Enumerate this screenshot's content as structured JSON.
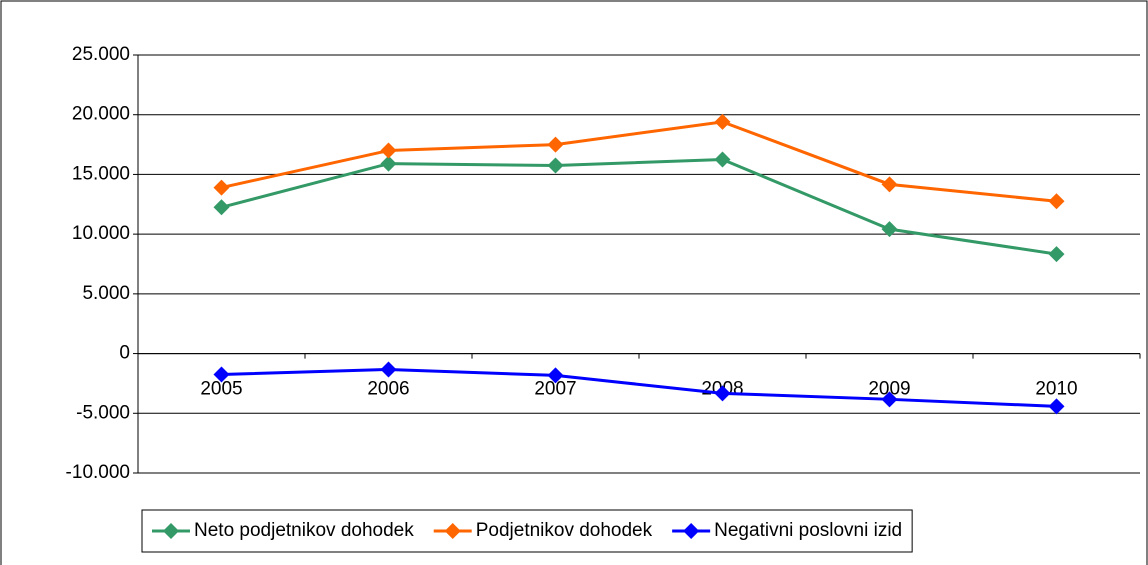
{
  "chart_data": {
    "type": "line",
    "categories": [
      "2005",
      "2006",
      "2007",
      "2008",
      "2009",
      "2010"
    ],
    "series": [
      {
        "name": "Neto podjetnikov dohodek",
        "color": "#339966",
        "values": [
          12250,
          15900,
          15750,
          16250,
          10420,
          8330
        ]
      },
      {
        "name": "Podjetnikov dohodek",
        "color": "#ff6600",
        "values": [
          13900,
          17000,
          17500,
          19400,
          14170,
          12750
        ]
      },
      {
        "name": "Negativni poslovni izid",
        "color": "#0000ff",
        "values": [
          -1750,
          -1330,
          -1830,
          -3330,
          -3830,
          -4420
        ]
      }
    ],
    "ylim": [
      -10000,
      25000
    ],
    "yticks": [
      {
        "value": -10000,
        "label": "-10.000"
      },
      {
        "value": -5000,
        "label": "-5.000"
      },
      0,
      {
        "value": 5000,
        "label": "5.000"
      },
      {
        "value": 10000,
        "label": "10.000"
      },
      {
        "value": 15000,
        "label": "15.000"
      },
      {
        "value": 20000,
        "label": "20.000"
      },
      {
        "value": 25000,
        "label": "25.000"
      }
    ],
    "grid": true,
    "legend": "bottom"
  }
}
